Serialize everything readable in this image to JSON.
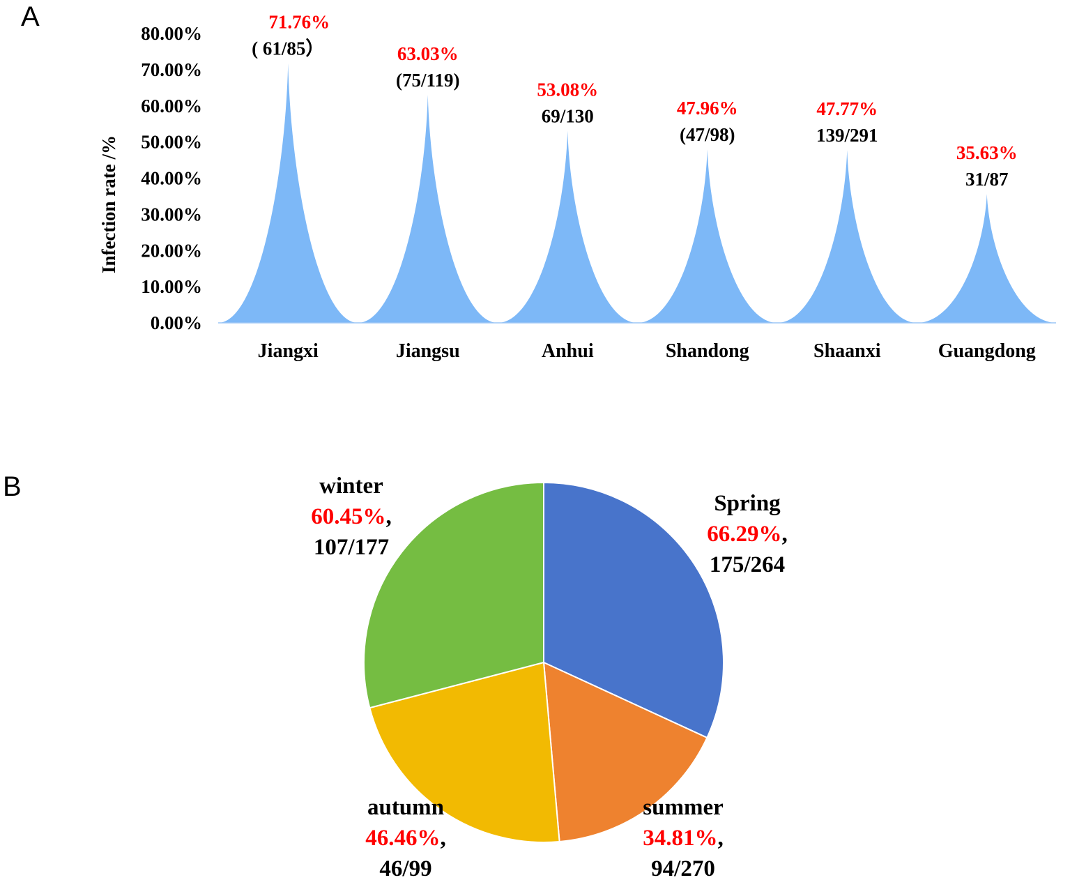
{
  "panels": {
    "a_letter": "A",
    "b_letter": "B"
  },
  "chart_data": [
    {
      "type": "area",
      "panel": "A",
      "title": "",
      "xlabel": "",
      "ylabel": "Infection rate /%",
      "ylim": [
        0,
        80
      ],
      "yticks": [
        "0.00%",
        "10.00%",
        "20.00%",
        "30.00%",
        "40.00%",
        "50.00%",
        "60.00%",
        "70.00%",
        "80.00%"
      ],
      "grid": false,
      "legend": null,
      "fill_color": "#7db8f7",
      "categories": [
        "Jiangxi",
        "Jiangsu",
        "Anhui",
        "Shandong",
        "Shaanxi",
        "Guangdong"
      ],
      "values": [
        71.76,
        63.03,
        53.08,
        47.96,
        47.77,
        35.63
      ],
      "pct_labels": [
        "71.76%",
        "63.03%",
        "53.08%",
        "47.96%",
        "47.77%",
        "35.63%"
      ],
      "fraction_labels": [
        "( 61/85）",
        "(75/119)",
        "69/130",
        "(47/98)",
        "139/291",
        "31/87"
      ],
      "label_color": "#ff0000"
    },
    {
      "type": "pie",
      "panel": "B",
      "title": "",
      "legend": null,
      "categories": [
        "Spring",
        "summer",
        "autumn",
        "winter"
      ],
      "values": [
        66.29,
        34.81,
        46.46,
        60.45
      ],
      "pct_labels": [
        "66.29%",
        "34.81%",
        "46.46%",
        "60.45%"
      ],
      "fraction_labels": [
        "175/264",
        "94/270",
        "46/99",
        "107/177"
      ],
      "colors": [
        "#4874cb",
        "#ee822f",
        "#f2ba02",
        "#75bd42"
      ],
      "start_angle": "12 o'clock, clockwise"
    }
  ]
}
